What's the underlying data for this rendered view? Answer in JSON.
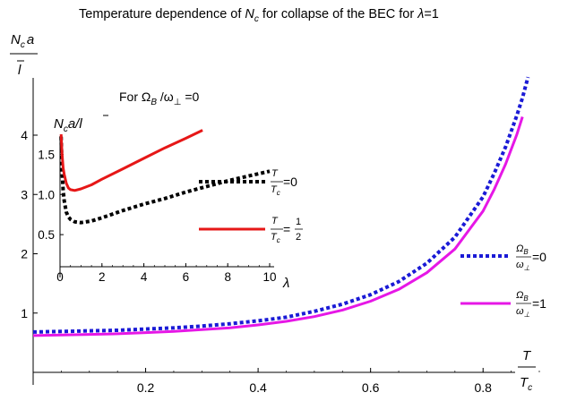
{
  "chart_data": [
    {
      "type": "line",
      "title_prefix": "Temperature dependence of ",
      "title_var": "N",
      "title_sub": "c",
      "title_suffix": " for collapse of the BEC for ",
      "title_lambda": "λ",
      "title_eq": "=1",
      "ylabel": {
        "N": "N",
        "c": "c",
        "a": "a",
        "l": "l"
      },
      "xlabel": {
        "T": "T",
        "Tc": "T",
        "c": "c"
      },
      "xlim": [
        0.0,
        0.9
      ],
      "ylim": [
        0.0,
        4.8
      ],
      "xticks": [
        "0.2",
        "0.4",
        "0.6",
        "0.8"
      ],
      "yticks": [
        "1",
        "2",
        "3",
        "4"
      ],
      "xtick_values": [
        0.2,
        0.4,
        0.6,
        0.8
      ],
      "ytick_values": [
        1,
        2,
        3,
        4
      ],
      "series": [
        {
          "legend": {
            "num": "Ω",
            "num_sub": "B",
            "den": "ω",
            "den_sub": "⊥",
            "eq": "=0"
          },
          "color": "#1a1ad6",
          "style": "dotted",
          "x": [
            0.0,
            0.05,
            0.1,
            0.15,
            0.2,
            0.25,
            0.3,
            0.35,
            0.4,
            0.45,
            0.5,
            0.55,
            0.6,
            0.65,
            0.7,
            0.75,
            0.8,
            0.82,
            0.84,
            0.86,
            0.87,
            0.88
          ],
          "y": [
            0.68,
            0.69,
            0.7,
            0.71,
            0.73,
            0.75,
            0.78,
            0.82,
            0.87,
            0.93,
            1.03,
            1.15,
            1.31,
            1.53,
            1.84,
            2.28,
            2.96,
            3.36,
            3.8,
            4.33,
            4.63,
            4.98
          ]
        },
        {
          "legend": {
            "num": "Ω",
            "num_sub": "B",
            "den": "ω",
            "den_sub": "⊥",
            "eq": "=1"
          },
          "color": "#e617e6",
          "style": "solid",
          "x": [
            0.0,
            0.05,
            0.1,
            0.15,
            0.2,
            0.25,
            0.3,
            0.35,
            0.4,
            0.45,
            0.5,
            0.55,
            0.6,
            0.65,
            0.7,
            0.75,
            0.8,
            0.82,
            0.84,
            0.86,
            0.87
          ],
          "y": [
            0.62,
            0.63,
            0.64,
            0.65,
            0.67,
            0.69,
            0.72,
            0.75,
            0.8,
            0.86,
            0.94,
            1.05,
            1.2,
            1.4,
            1.68,
            2.08,
            2.72,
            3.09,
            3.51,
            4.01,
            4.31
          ]
        }
      ]
    },
    {
      "type": "line",
      "title": "For Ω",
      "title_sub": "B",
      "title_mid": " /ω",
      "title_sub2": "⊥",
      "title_end": " =0",
      "ylabel": "N",
      "ylabel_sub": "c",
      "ylabel_rest": "a/l",
      "xlabel": "λ",
      "xlim": [
        0,
        10
      ],
      "ylim": [
        0.1,
        1.75
      ],
      "xticks": [
        "0",
        "2",
        "4",
        "6",
        "8",
        "10"
      ],
      "yticks": [
        "0.5",
        "1.0",
        "1.5"
      ],
      "xtick_values": [
        0,
        2,
        4,
        6,
        8,
        10
      ],
      "ytick_values": [
        0.5,
        1.0,
        1.5
      ],
      "series": [
        {
          "legend": {
            "num": "T",
            "den": "T",
            "den_sub": "c",
            "eq": "=0"
          },
          "color": "#000000",
          "style": "dotted",
          "x": [
            0.05,
            0.1,
            0.15,
            0.2,
            0.3,
            0.4,
            0.5,
            0.7,
            1.0,
            1.5,
            2.0,
            3.0,
            4.0,
            5.0,
            6.0,
            7.0,
            8.0,
            9.0,
            10.0
          ],
          "y": [
            1.72,
            1.3,
            1.05,
            0.92,
            0.78,
            0.72,
            0.69,
            0.66,
            0.65,
            0.67,
            0.71,
            0.8,
            0.88,
            0.95,
            1.03,
            1.1,
            1.17,
            1.23,
            1.29
          ]
        },
        {
          "legend": {
            "num": "T",
            "den": "T",
            "den_sub": "c",
            "eq": "=",
            "frac_num": "1",
            "frac_den": "2"
          },
          "color": "#e61717",
          "style": "solid",
          "x": [
            0.05,
            0.1,
            0.15,
            0.2,
            0.3,
            0.4,
            0.5,
            0.7,
            1.0,
            1.5,
            2.0,
            3.0,
            4.0,
            5.0,
            6.0,
            6.8
          ],
          "y": [
            1.75,
            1.5,
            1.33,
            1.25,
            1.14,
            1.08,
            1.06,
            1.05,
            1.07,
            1.12,
            1.19,
            1.32,
            1.45,
            1.58,
            1.7,
            1.8
          ]
        }
      ]
    }
  ]
}
